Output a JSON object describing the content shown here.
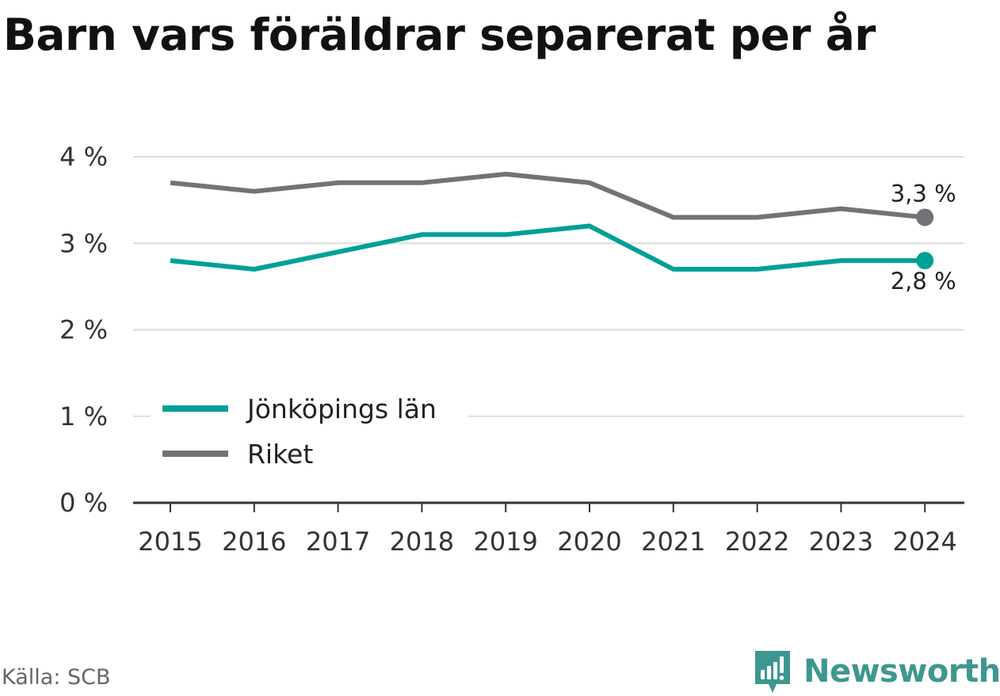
{
  "title": "Barn vars föräldrar separerat per år",
  "source": "Källa: SCB",
  "brand": {
    "name": "Newsworthy",
    "color": "#3e978f",
    "logo_icon": "newsworthy-chart-logo-icon"
  },
  "chart_data": {
    "type": "line",
    "x": [
      "2015",
      "2016",
      "2017",
      "2018",
      "2019",
      "2020",
      "2021",
      "2022",
      "2023",
      "2024"
    ],
    "series": [
      {
        "name": "Jönköpings län",
        "color": "#00a097",
        "values": [
          2.8,
          2.7,
          2.9,
          3.1,
          3.1,
          3.2,
          2.7,
          2.7,
          2.8,
          2.8
        ],
        "end_label": "2,8 %"
      },
      {
        "name": "Riket",
        "color": "#737278",
        "values": [
          3.7,
          3.6,
          3.7,
          3.7,
          3.8,
          3.7,
          3.3,
          3.3,
          3.4,
          3.3
        ],
        "end_label": "3,3 %"
      }
    ],
    "ylim": [
      0,
      4
    ],
    "y_ticks": [
      {
        "value": 0,
        "label": "0 %"
      },
      {
        "value": 1,
        "label": "1 %"
      },
      {
        "value": 2,
        "label": "2 %"
      },
      {
        "value": 3,
        "label": "3 %"
      },
      {
        "value": 4,
        "label": "4 %"
      }
    ],
    "xlabel": "",
    "ylabel": "",
    "grid": true,
    "legend_position": "bottom-left"
  }
}
